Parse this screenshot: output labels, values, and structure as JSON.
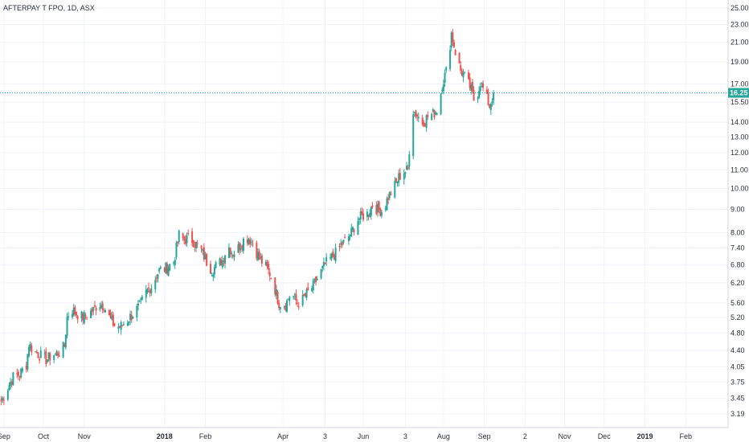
{
  "chart_data": {
    "type": "candlestick",
    "title": "AFTERPAY T FPO, 1D, ASX",
    "scale": "log",
    "grid": true,
    "ylim": [
      3.0,
      25.5
    ],
    "y_ticks": [
      "25.00",
      "23.00",
      "21.00",
      "19.00",
      "17.00",
      "15.50",
      "14.00",
      "13.00",
      "12.00",
      "11.00",
      "10.00",
      "9.00",
      "8.00",
      "7.40",
      "6.80",
      "6.20",
      "5.60",
      "5.20",
      "4.80",
      "4.40",
      "4.05",
      "3.75",
      "3.45",
      "3.19"
    ],
    "x_labels": [
      {
        "label": "Sep",
        "date": "2017-09-01",
        "bold": false
      },
      {
        "label": "Oct",
        "date": "2017-10-01",
        "bold": false
      },
      {
        "label": "Nov",
        "date": "2017-11-01",
        "bold": false
      },
      {
        "label": "2018",
        "date": "2018-01-01",
        "bold": true
      },
      {
        "label": "Feb",
        "date": "2018-02-01",
        "bold": false
      },
      {
        "label": "Apr",
        "date": "2018-04-01",
        "bold": false
      },
      {
        "label": "3",
        "date": "2018-05-03",
        "bold": false
      },
      {
        "label": "Jun",
        "date": "2018-06-01",
        "bold": false
      },
      {
        "label": "3",
        "date": "2018-07-03",
        "bold": false
      },
      {
        "label": "Aug",
        "date": "2018-08-01",
        "bold": false
      },
      {
        "label": "Sep",
        "date": "2018-09-01",
        "bold": false
      },
      {
        "label": "2",
        "date": "2018-10-02",
        "bold": false
      },
      {
        "label": "Nov",
        "date": "2018-11-01",
        "bold": false
      },
      {
        "label": "Dec",
        "date": "2018-12-01",
        "bold": false
      },
      {
        "label": "2019",
        "date": "2019-01-01",
        "bold": true
      },
      {
        "label": "Feb",
        "date": "2019-02-01",
        "bold": false
      }
    ],
    "x_range": [
      "2017-08-29",
      "2019-03-04"
    ],
    "last_price": 16.25,
    "last_price_label": "16.25",
    "colors": {
      "up": "#26a69a",
      "down": "#ef5350",
      "grid": "#f0f3fa",
      "price_line": "#26a69a",
      "axis_text": "#2a2e39"
    },
    "approx_closes": [
      [
        "2017-08-30",
        3.4
      ],
      [
        "2017-09-05",
        3.7
      ],
      [
        "2017-09-08",
        3.85
      ],
      [
        "2017-09-13",
        3.9
      ],
      [
        "2017-09-18",
        4.1
      ],
      [
        "2017-09-20",
        4.55
      ],
      [
        "2017-09-23",
        4.4
      ],
      [
        "2017-09-28",
        4.3
      ],
      [
        "2017-10-03",
        4.2
      ],
      [
        "2017-10-08",
        4.3
      ],
      [
        "2017-10-13",
        4.35
      ],
      [
        "2017-10-17",
        4.5
      ],
      [
        "2017-10-19",
        5.2
      ],
      [
        "2017-10-22",
        5.45
      ],
      [
        "2017-10-26",
        5.3
      ],
      [
        "2017-10-31",
        5.2
      ],
      [
        "2017-11-04",
        5.3
      ],
      [
        "2017-11-08",
        5.4
      ],
      [
        "2017-11-12",
        5.6
      ],
      [
        "2017-11-16",
        5.5
      ],
      [
        "2017-11-20",
        5.2
      ],
      [
        "2017-11-24",
        5.0
      ],
      [
        "2017-11-28",
        4.95
      ],
      [
        "2017-12-03",
        5.1
      ],
      [
        "2017-12-08",
        5.3
      ],
      [
        "2017-12-13",
        5.5
      ],
      [
        "2017-12-18",
        5.9
      ],
      [
        "2017-12-22",
        6.1
      ],
      [
        "2017-12-28",
        6.6
      ],
      [
        "2018-01-03",
        6.7
      ],
      [
        "2018-01-08",
        6.9
      ],
      [
        "2018-01-12",
        7.9
      ],
      [
        "2018-01-16",
        7.7
      ],
      [
        "2018-01-20",
        7.8
      ],
      [
        "2018-01-24",
        7.6
      ],
      [
        "2018-01-29",
        7.3
      ],
      [
        "2018-02-02",
        6.9
      ],
      [
        "2018-02-06",
        6.6
      ],
      [
        "2018-02-10",
        6.8
      ],
      [
        "2018-02-14",
        6.95
      ],
      [
        "2018-02-18",
        7.5
      ],
      [
        "2018-02-22",
        7.2
      ],
      [
        "2018-02-26",
        7.4
      ],
      [
        "2018-03-02",
        7.7
      ],
      [
        "2018-03-06",
        7.8
      ],
      [
        "2018-03-10",
        7.5
      ],
      [
        "2018-03-14",
        7.0
      ],
      [
        "2018-03-18",
        6.8
      ],
      [
        "2018-03-22",
        6.5
      ],
      [
        "2018-03-26",
        6.0
      ],
      [
        "2018-03-29",
        5.6
      ],
      [
        "2018-04-03",
        5.55
      ],
      [
        "2018-04-07",
        5.9
      ],
      [
        "2018-04-12",
        5.6
      ],
      [
        "2018-04-16",
        5.7
      ],
      [
        "2018-04-20",
        5.9
      ],
      [
        "2018-04-24",
        6.1
      ],
      [
        "2018-04-28",
        6.4
      ],
      [
        "2018-05-03",
        6.8
      ],
      [
        "2018-05-07",
        7.0
      ],
      [
        "2018-05-11",
        7.2
      ],
      [
        "2018-05-15",
        7.5
      ],
      [
        "2018-05-19",
        7.7
      ],
      [
        "2018-05-23",
        8.0
      ],
      [
        "2018-05-27",
        8.5
      ],
      [
        "2018-05-31",
        8.7
      ],
      [
        "2018-06-04",
        8.8
      ],
      [
        "2018-06-08",
        9.2
      ],
      [
        "2018-06-12",
        9.0
      ],
      [
        "2018-06-16",
        8.9
      ],
      [
        "2018-06-20",
        9.6
      ],
      [
        "2018-06-24",
        10.0
      ],
      [
        "2018-06-28",
        10.6
      ],
      [
        "2018-07-02",
        10.9
      ],
      [
        "2018-07-05",
        11.0
      ],
      [
        "2018-07-08",
        15.0
      ],
      [
        "2018-07-12",
        14.5
      ],
      [
        "2018-07-16",
        14.0
      ],
      [
        "2018-07-20",
        14.4
      ],
      [
        "2018-07-24",
        14.6
      ],
      [
        "2018-07-28",
        15.0
      ],
      [
        "2018-07-31",
        17.0
      ],
      [
        "2018-08-04",
        18.5
      ],
      [
        "2018-08-07",
        22.0
      ],
      [
        "2018-08-10",
        20.0
      ],
      [
        "2018-08-14",
        18.2
      ],
      [
        "2018-08-18",
        17.5
      ],
      [
        "2018-08-22",
        16.5
      ],
      [
        "2018-08-25",
        15.3
      ],
      [
        "2018-08-29",
        17.2
      ],
      [
        "2018-09-02",
        16.0
      ],
      [
        "2018-09-05",
        15.2
      ],
      [
        "2018-09-08",
        16.25
      ]
    ]
  }
}
